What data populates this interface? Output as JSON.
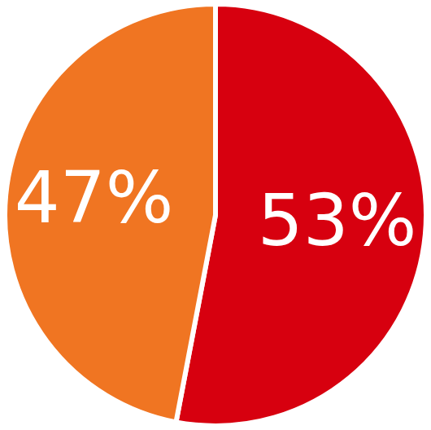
{
  "chart_data": {
    "type": "pie",
    "categories": [
      null,
      null
    ],
    "values": [
      53,
      47
    ],
    "value_labels": [
      "53%",
      "47%"
    ],
    "colors": [
      "#d7000f",
      "#f07522"
    ],
    "data_labels": true
  }
}
